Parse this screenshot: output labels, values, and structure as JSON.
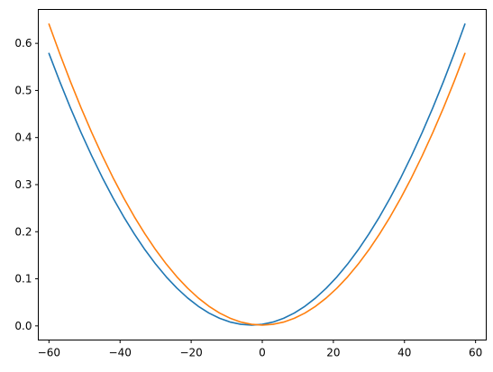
{
  "chart_data": {
    "type": "line",
    "title": "",
    "xlabel": "",
    "ylabel": "",
    "xlim": [
      -63,
      63
    ],
    "ylim": [
      -0.03,
      0.672
    ],
    "xticks": [
      -60,
      -40,
      -20,
      0,
      20,
      40,
      60
    ],
    "xtick_labels": [
      "−60",
      "−40",
      "−20",
      "0",
      "20",
      "40",
      "60"
    ],
    "yticks": [
      0.0,
      0.1,
      0.2,
      0.3,
      0.4,
      0.5,
      0.6
    ],
    "ytick_labels": [
      "0.0",
      "0.1",
      "0.2",
      "0.3",
      "0.4",
      "0.5",
      "0.6"
    ],
    "grid": false,
    "legend": false,
    "x": [
      -60,
      -57,
      -54,
      -51,
      -48,
      -45,
      -42,
      -39,
      -36,
      -33,
      -30,
      -27,
      -24,
      -21,
      -18,
      -15,
      -12,
      -9,
      -6,
      -3,
      0,
      3,
      6,
      9,
      12,
      15,
      18,
      21,
      24,
      27,
      30,
      33,
      36,
      39,
      42,
      45,
      48,
      51,
      54,
      57
    ],
    "series": [
      {
        "color": "#1f77b4",
        "values": [
          0.5787,
          0.5196,
          0.4637,
          0.411,
          0.3615,
          0.3151,
          0.272,
          0.232,
          0.1953,
          0.1617,
          0.1313,
          0.1041,
          0.0801,
          0.0593,
          0.0417,
          0.0273,
          0.0161,
          0.0081,
          0.0033,
          0.0017,
          0.0033,
          0.0081,
          0.0161,
          0.0273,
          0.0417,
          0.0593,
          0.0801,
          0.1041,
          0.1313,
          0.1617,
          0.1953,
          0.232,
          0.272,
          0.3151,
          0.3615,
          0.411,
          0.4637,
          0.5196,
          0.5787,
          0.6409
        ]
      },
      {
        "color": "#ff7f0e",
        "values": [
          0.6409,
          0.5787,
          0.5196,
          0.4637,
          0.411,
          0.3615,
          0.3151,
          0.272,
          0.232,
          0.1953,
          0.1617,
          0.1313,
          0.1041,
          0.0801,
          0.0593,
          0.0417,
          0.0273,
          0.0161,
          0.0081,
          0.0033,
          0.0017,
          0.0033,
          0.0081,
          0.0161,
          0.0273,
          0.0417,
          0.0593,
          0.0801,
          0.1041,
          0.1313,
          0.1617,
          0.1953,
          0.232,
          0.272,
          0.3151,
          0.3615,
          0.411,
          0.4637,
          0.5196,
          0.5787
        ]
      }
    ]
  }
}
